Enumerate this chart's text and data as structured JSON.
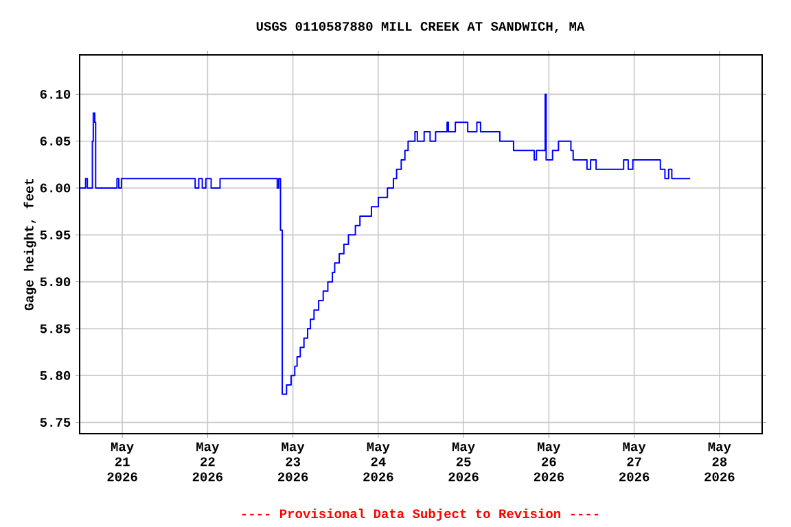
{
  "chart_data": {
    "type": "step",
    "title": "USGS 0110587880 MILL CREEK AT SANDWICH, MA",
    "ylabel": "Gage height, feet",
    "annotations": [
      "---- Provisional Data Subject to Revision ----"
    ],
    "x": [
      "2026-05-20T12:00",
      "2026-05-20T13:40",
      "2026-05-20T14:10",
      "2026-05-20T15:35",
      "2026-05-20T15:50",
      "2026-05-20T16:15",
      "2026-05-20T16:30",
      "2026-05-20T22:30",
      "2026-05-20T23:00",
      "2026-05-20T23:45",
      "2026-05-21T20:30",
      "2026-05-21T21:30",
      "2026-05-21T22:30",
      "2026-05-21T23:30",
      "2026-05-22T01:00",
      "2026-05-22T03:30",
      "2026-05-22T19:35",
      "2026-05-22T20:00",
      "2026-05-22T20:30",
      "2026-05-22T21:00",
      "2026-05-22T22:12",
      "2026-05-22T23:29",
      "2026-05-23T00:31",
      "2026-05-23T01:10",
      "2026-05-23T02:04",
      "2026-05-23T03:06",
      "2026-05-23T04:08",
      "2026-05-23T04:55",
      "2026-05-23T05:56",
      "2026-05-23T07:14",
      "2026-05-23T08:31",
      "2026-05-23T09:49",
      "2026-05-23T11:06",
      "2026-05-23T11:45",
      "2026-05-23T13:02",
      "2026-05-23T14:20",
      "2026-05-23T15:37",
      "2026-05-23T17:34",
      "2026-05-23T18:51",
      "2026-05-23T22:05",
      "2026-05-24T00:01",
      "2026-05-24T02:35",
      "2026-05-24T04:16",
      "2026-05-24T05:10",
      "2026-05-24T06:28",
      "2026-05-24T07:30",
      "2026-05-24T08:24",
      "2026-05-24T10:20",
      "2026-05-24T11:00",
      "2026-05-24T12:55",
      "2026-05-24T14:35",
      "2026-05-24T16:08",
      "2026-05-24T19:22",
      "2026-05-24T19:44",
      "2026-05-24T21:41",
      "2026-05-25T01:10",
      "2026-05-25T03:44",
      "2026-05-25T04:47",
      "2026-05-25T10:12",
      "2026-05-25T14:04",
      "2026-05-25T19:52",
      "2026-05-25T20:30",
      "2026-05-25T22:58",
      "2026-05-25T23:14",
      "2026-05-26T01:02",
      "2026-05-26T02:42",
      "2026-05-26T06:12",
      "2026-05-26T06:50",
      "2026-05-26T10:43",
      "2026-05-26T11:44",
      "2026-05-26T13:17",
      "2026-05-26T21:02",
      "2026-05-26T22:19",
      "2026-05-26T23:37",
      "2026-05-27T07:22",
      "2026-05-27T08:39",
      "2026-05-27T09:41",
      "2026-05-27T10:35",
      "2026-05-27T15:45"
    ],
    "series": [
      {
        "color": "#0000ff",
        "values": [
          6.0,
          6.01,
          6.0,
          6.05,
          6.08,
          6.07,
          6.0,
          6.01,
          6.0,
          6.01,
          6.0,
          6.01,
          6.0,
          6.01,
          6.0,
          6.01,
          6.0,
          6.01,
          5.955,
          5.78,
          5.79,
          5.8,
          5.81,
          5.82,
          5.83,
          5.84,
          5.85,
          5.86,
          5.87,
          5.88,
          5.89,
          5.9,
          5.91,
          5.92,
          5.93,
          5.94,
          5.95,
          5.96,
          5.97,
          5.98,
          5.99,
          6.0,
          6.01,
          6.02,
          6.03,
          6.04,
          6.05,
          6.06,
          6.05,
          6.06,
          6.05,
          6.06,
          6.07,
          6.06,
          6.07,
          6.06,
          6.07,
          6.06,
          6.05,
          6.04,
          6.03,
          6.04,
          6.1,
          6.03,
          6.04,
          6.05,
          6.04,
          6.03,
          6.02,
          6.03,
          6.02,
          6.03,
          6.02,
          6.03,
          6.02,
          6.01,
          6.02,
          6.01,
          6.01
        ]
      }
    ],
    "xlim": [
      "2026-05-20T12:00",
      "2026-05-28T12:00"
    ],
    "xticks": [
      {
        "value": "2026-05-21",
        "label": "May 21 2026"
      },
      {
        "value": "2026-05-22",
        "label": "May 22 2026"
      },
      {
        "value": "2026-05-23",
        "label": "May 23 2026"
      },
      {
        "value": "2026-05-24",
        "label": "May 24 2026"
      },
      {
        "value": "2026-05-25",
        "label": "May 25 2026"
      },
      {
        "value": "2026-05-26",
        "label": "May 26 2026"
      },
      {
        "value": "2026-05-27",
        "label": "May 27 2026"
      },
      {
        "value": "2026-05-28",
        "label": "May 28 2026"
      }
    ],
    "ylim": [
      5.738,
      6.142
    ],
    "yticks": [
      {
        "value": 5.75,
        "label": "5.75"
      },
      {
        "value": 5.8,
        "label": "5.80"
      },
      {
        "value": 5.85,
        "label": "5.85"
      },
      {
        "value": 5.9,
        "label": "5.90"
      },
      {
        "value": 5.95,
        "label": "5.95"
      },
      {
        "value": 6.0,
        "label": "6.00"
      },
      {
        "value": 6.05,
        "label": "6.05"
      },
      {
        "value": 6.1,
        "label": "6.10"
      }
    ],
    "grid": true
  }
}
